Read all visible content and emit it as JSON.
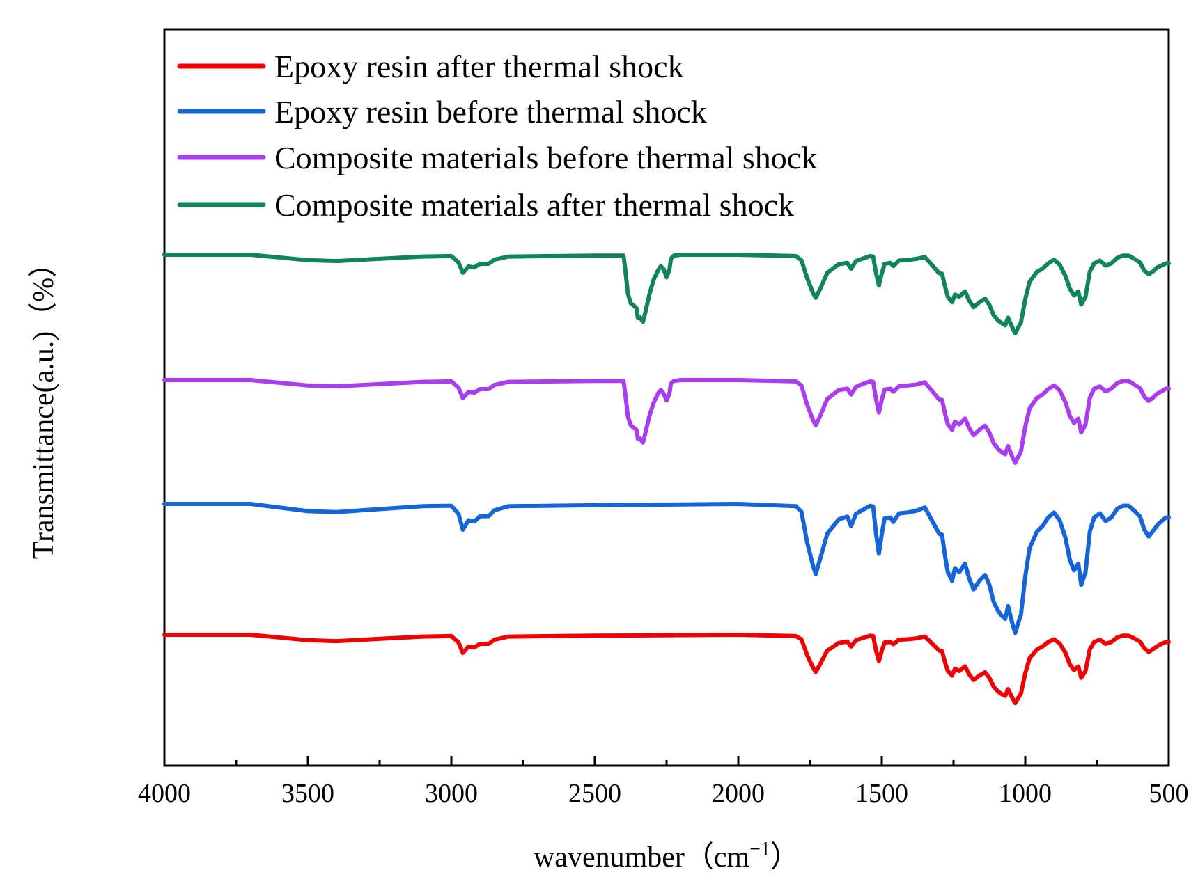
{
  "chart_data": {
    "type": "line",
    "title": "",
    "xlabel": "wavenumber (cm⁻¹)",
    "xlabel_main": "wavenumber（cm",
    "xlabel_sup": "−1",
    "xlabel_close": "）",
    "ylabel": "Transmittance(a.u.)（%）",
    "xlim": [
      4000,
      500
    ],
    "x_reversed": true,
    "y_ticks_shown": false,
    "grid": false,
    "legend_position": "top-left",
    "x_ticks": [
      "4000",
      "3500",
      "3000",
      "2500",
      "2000",
      "1500",
      "1000",
      "500"
    ],
    "x_tick_values": [
      4000,
      3500,
      3000,
      2500,
      2000,
      1500,
      1000,
      500
    ],
    "series": [
      {
        "name": "Epoxy resin after thermal shock",
        "color": "#ee0000",
        "offset": 0,
        "x": [
          4000,
          3700,
          3500,
          3400,
          3100,
          3000,
          2975,
          2960,
          2940,
          2920,
          2900,
          2870,
          2850,
          2800,
          2500,
          2000,
          1800,
          1780,
          1760,
          1740,
          1730,
          1715,
          1690,
          1650,
          1620,
          1607,
          1590,
          1560,
          1540,
          1530,
          1520,
          1510,
          1500,
          1490,
          1470,
          1460,
          1440,
          1410,
          1380,
          1350,
          1330,
          1300,
          1290,
          1280,
          1270,
          1255,
          1245,
          1230,
          1210,
          1195,
          1180,
          1160,
          1140,
          1125,
          1110,
          1095,
          1085,
          1070,
          1060,
          1045,
          1035,
          1025,
          1015,
          1000,
          985,
          960,
          940,
          920,
          900,
          880,
          860,
          845,
          830,
          815,
          805,
          790,
          775,
          760,
          740,
          720,
          700,
          680,
          660,
          640,
          620,
          600,
          585,
          570,
          555,
          540,
          525,
          510,
          500
        ],
        "y": [
          100,
          100,
          98.8,
          98.6,
          99.6,
          99.7,
          98.3,
          96.0,
          97.4,
          97.2,
          98.0,
          98.0,
          98.9,
          99.6,
          99.8,
          100,
          99.7,
          99.0,
          95.5,
          92.8,
          91.8,
          93.5,
          96.5,
          98.2,
          98.5,
          97.4,
          98.8,
          99.4,
          99.8,
          99.7,
          96.5,
          94.2,
          96.5,
          98.3,
          98.4,
          97.9,
          98.9,
          99.0,
          99.2,
          99.6,
          98.4,
          96.5,
          96.4,
          94.0,
          92.0,
          91.0,
          92.5,
          92.0,
          93.0,
          91.2,
          90.0,
          91.0,
          91.7,
          90.5,
          88.5,
          87.5,
          87.0,
          86.5,
          88.0,
          86.0,
          84.9,
          86.0,
          87.0,
          91.5,
          94.8,
          96.7,
          97.4,
          98.4,
          99.0,
          98.1,
          96.0,
          93.5,
          92.2,
          93.0,
          90.5,
          92.0,
          96.8,
          98.4,
          98.9,
          98.0,
          98.4,
          99.4,
          99.8,
          99.8,
          99.2,
          98.5,
          97.0,
          96.2,
          96.8,
          97.5,
          98.0,
          98.4,
          98.4
        ]
      },
      {
        "name": "Epoxy resin before thermal shock",
        "color": "#1565d8",
        "offset": 1,
        "x": [
          4000,
          3700,
          3500,
          3400,
          3100,
          3000,
          2975,
          2960,
          2940,
          2920,
          2900,
          2870,
          2850,
          2800,
          2500,
          2000,
          1800,
          1780,
          1760,
          1740,
          1730,
          1715,
          1690,
          1650,
          1620,
          1607,
          1590,
          1560,
          1540,
          1530,
          1520,
          1510,
          1500,
          1490,
          1470,
          1460,
          1440,
          1410,
          1380,
          1350,
          1330,
          1300,
          1290,
          1280,
          1270,
          1255,
          1245,
          1230,
          1210,
          1195,
          1180,
          1160,
          1140,
          1125,
          1110,
          1095,
          1085,
          1070,
          1060,
          1045,
          1035,
          1025,
          1015,
          1000,
          985,
          960,
          940,
          920,
          900,
          880,
          860,
          845,
          830,
          815,
          805,
          790,
          775,
          760,
          740,
          720,
          700,
          680,
          660,
          640,
          620,
          600,
          585,
          570,
          555,
          540,
          525,
          510,
          500
        ],
        "y": [
          100,
          100,
          98.4,
          98.2,
          99.5,
          99.6,
          97.8,
          94.3,
          96.4,
          96.1,
          97.3,
          97.3,
          98.6,
          99.5,
          99.7,
          100,
          99.5,
          98.3,
          91.5,
          86.4,
          84.5,
          87.8,
          93.4,
          96.6,
          97.2,
          95.1,
          97.8,
          98.9,
          99.6,
          99.4,
          93.4,
          89.0,
          93.4,
          96.8,
          97.0,
          96.0,
          97.9,
          98.1,
          98.5,
          99.2,
          96.9,
          93.4,
          93.2,
          88.7,
          84.9,
          83.0,
          85.8,
          84.9,
          86.8,
          83.4,
          81.1,
          83.0,
          84.3,
          82.1,
          78.3,
          76.4,
          75.5,
          74.6,
          77.4,
          73.6,
          71.5,
          73.6,
          75.5,
          84.0,
          90.2,
          93.8,
          95.1,
          97.0,
          98.1,
          96.4,
          92.5,
          87.7,
          85.3,
          86.8,
          82.1,
          84.9,
          93.9,
          97.0,
          97.9,
          96.2,
          97.0,
          98.9,
          99.6,
          99.6,
          98.5,
          97.2,
          94.3,
          92.8,
          94.0,
          95.3,
          96.2,
          97.0,
          97.0
        ]
      },
      {
        "name": "Composite materials before thermal shock",
        "color": "#a83ef0",
        "offset": 2,
        "x": [
          4000,
          3700,
          3500,
          3400,
          3100,
          3000,
          2975,
          2960,
          2940,
          2920,
          2900,
          2870,
          2850,
          2800,
          2500,
          2420,
          2400,
          2395,
          2385,
          2375,
          2365,
          2355,
          2350,
          2345,
          2340,
          2332,
          2325,
          2310,
          2295,
          2280,
          2270,
          2260,
          2250,
          2240,
          2235,
          2225,
          2200,
          2000,
          1800,
          1780,
          1760,
          1740,
          1730,
          1715,
          1690,
          1650,
          1620,
          1607,
          1590,
          1560,
          1540,
          1530,
          1520,
          1510,
          1500,
          1490,
          1470,
          1460,
          1440,
          1410,
          1380,
          1350,
          1330,
          1300,
          1290,
          1280,
          1270,
          1255,
          1245,
          1230,
          1210,
          1195,
          1180,
          1160,
          1140,
          1125,
          1110,
          1095,
          1085,
          1070,
          1060,
          1045,
          1035,
          1025,
          1015,
          1000,
          985,
          960,
          940,
          920,
          900,
          880,
          860,
          845,
          830,
          815,
          805,
          790,
          775,
          760,
          740,
          720,
          700,
          680,
          660,
          640,
          620,
          600,
          585,
          570,
          555,
          540,
          525,
          510,
          500
        ],
        "y": [
          100,
          100,
          98.8,
          98.6,
          99.6,
          99.7,
          98.3,
          96.0,
          97.4,
          97.2,
          98.0,
          98.0,
          98.9,
          99.6,
          99.8,
          99.8,
          99.8,
          97.5,
          92.0,
          90.0,
          89.5,
          89.0,
          87.0,
          87.2,
          86.8,
          86.2,
          88.0,
          92.0,
          95.0,
          97.0,
          97.8,
          97.0,
          95.5,
          97.0,
          99.2,
          99.8,
          100,
          100,
          99.7,
          98.8,
          94.5,
          91.2,
          90.0,
          92.0,
          95.8,
          97.8,
          98.1,
          96.8,
          98.5,
          99.3,
          99.7,
          99.6,
          95.7,
          92.8,
          95.7,
          97.9,
          98.1,
          97.4,
          98.6,
          98.8,
          99.0,
          99.5,
          98.0,
          95.7,
          95.6,
          92.7,
          90.2,
          89.0,
          90.8,
          90.2,
          91.5,
          89.3,
          87.8,
          89.0,
          89.9,
          88.4,
          86.0,
          84.8,
          84.2,
          83.6,
          85.4,
          83.0,
          81.7,
          83.0,
          84.2,
          89.7,
          93.7,
          96.0,
          96.8,
          98.0,
          98.8,
          97.7,
          95.1,
          92.1,
          90.5,
          91.5,
          88.4,
          90.2,
          96.1,
          98.1,
          98.6,
          97.5,
          98.1,
          99.3,
          99.8,
          99.8,
          99.0,
          98.2,
          96.3,
          95.4,
          96.1,
          97.0,
          97.5,
          98.1,
          98.1
        ]
      },
      {
        "name": "Composite materials after thermal shock",
        "color": "#12845a",
        "offset": 3,
        "x": [
          4000,
          3700,
          3500,
          3400,
          3100,
          3000,
          2975,
          2960,
          2940,
          2920,
          2900,
          2870,
          2850,
          2800,
          2500,
          2420,
          2400,
          2395,
          2385,
          2375,
          2365,
          2355,
          2350,
          2345,
          2340,
          2332,
          2325,
          2310,
          2295,
          2280,
          2270,
          2260,
          2250,
          2240,
          2235,
          2225,
          2200,
          2000,
          1800,
          1780,
          1760,
          1740,
          1730,
          1715,
          1690,
          1650,
          1620,
          1607,
          1590,
          1560,
          1540,
          1530,
          1520,
          1510,
          1500,
          1490,
          1470,
          1460,
          1440,
          1410,
          1380,
          1350,
          1330,
          1300,
          1290,
          1280,
          1270,
          1255,
          1245,
          1230,
          1210,
          1195,
          1180,
          1160,
          1140,
          1125,
          1110,
          1095,
          1085,
          1070,
          1060,
          1045,
          1035,
          1025,
          1015,
          1000,
          985,
          960,
          940,
          920,
          900,
          880,
          860,
          845,
          830,
          815,
          805,
          790,
          775,
          760,
          740,
          720,
          700,
          680,
          660,
          640,
          620,
          600,
          585,
          570,
          555,
          540,
          525,
          510,
          500
        ],
        "y": [
          100,
          100,
          98.8,
          98.6,
          99.6,
          99.7,
          98.3,
          96.0,
          97.4,
          97.2,
          98.0,
          98.0,
          98.9,
          99.6,
          99.8,
          99.8,
          99.8,
          97.3,
          91.5,
          89.3,
          88.8,
          88.2,
          86.0,
          86.3,
          85.9,
          85.2,
          87.0,
          91.2,
          94.5,
          96.5,
          97.5,
          96.8,
          95.0,
          96.7,
          99.1,
          99.8,
          100,
          100,
          99.7,
          98.8,
          94.8,
          91.6,
          90.5,
          92.4,
          96.0,
          97.9,
          98.2,
          96.9,
          98.6,
          99.3,
          99.7,
          99.6,
          95.9,
          93.2,
          95.9,
          98.0,
          98.2,
          97.5,
          98.7,
          98.8,
          99.1,
          99.5,
          98.1,
          95.9,
          95.8,
          93.1,
          90.7,
          89.5,
          91.2,
          90.7,
          91.9,
          89.8,
          88.4,
          89.5,
          90.3,
          88.9,
          86.6,
          85.5,
          85.0,
          84.4,
          86.1,
          83.9,
          82.6,
          83.9,
          85.0,
          90.2,
          94.0,
          96.2,
          96.9,
          98.1,
          98.9,
          97.8,
          95.3,
          92.5,
          91.0,
          91.9,
          89.0,
          90.7,
          96.3,
          98.1,
          98.7,
          97.6,
          98.1,
          99.3,
          99.8,
          99.8,
          99.1,
          98.3,
          96.5,
          95.7,
          96.3,
          97.2,
          97.6,
          98.1,
          98.1
        ]
      }
    ]
  }
}
